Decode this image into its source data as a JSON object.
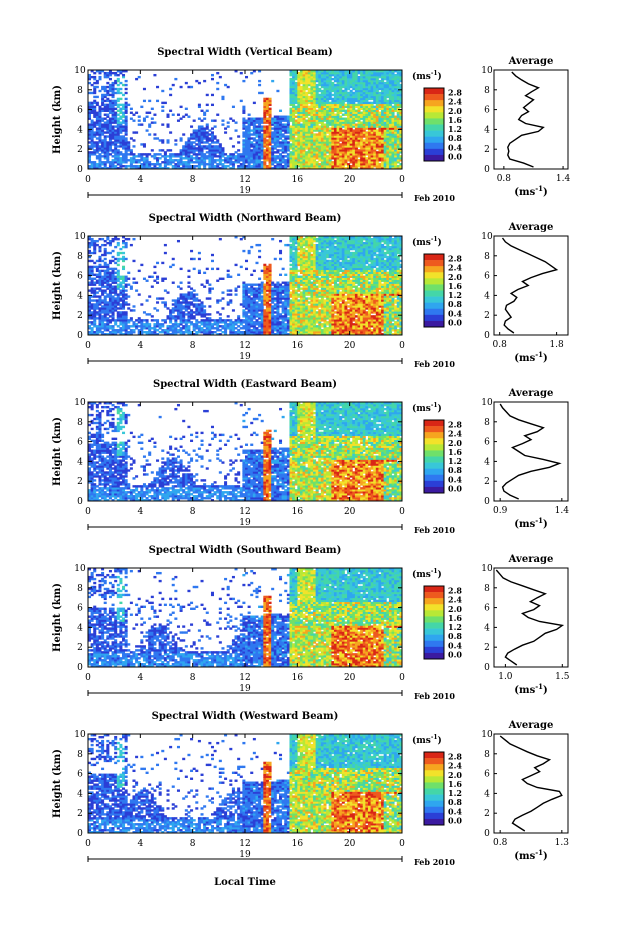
{
  "chart_data": [
    {
      "type": "heatmap",
      "title": "Spectral Width (Vertical Beam)",
      "ylabel": "Height (km)",
      "x_ticks": [
        "0",
        "4",
        "8",
        "12",
        "16",
        "20",
        "0"
      ],
      "y_ticks": [
        "0",
        "2",
        "4",
        "6",
        "8",
        "10"
      ],
      "xlim": [
        0,
        24
      ],
      "ylim": [
        0,
        10
      ],
      "date_label": "19",
      "date_suffix": "Feb 2010",
      "colorbar": {
        "unit": "(ms",
        "unit_sup": "-1",
        "unit_close": ")",
        "ticks": [
          "2.8",
          "2.4",
          "2.0",
          "1.6",
          "1.2",
          "0.8",
          "0.4",
          "0.0"
        ]
      },
      "average": {
        "title": "Average",
        "xlabel": "(ms",
        "xlabel_sup": "-1",
        "xlabel_close": ")",
        "x_ticks": [
          "0.8",
          "1.4"
        ],
        "xlim": [
          0.7,
          1.45
        ],
        "y_ticks": [
          "0",
          "2",
          "4",
          "6",
          "8",
          "10"
        ],
        "height": [
          0.2,
          0.6,
          1.0,
          1.4,
          1.8,
          2.2,
          2.6,
          3.0,
          3.4,
          3.8,
          4.2,
          4.6,
          5.0,
          5.4,
          5.8,
          6.2,
          6.6,
          7.0,
          7.4,
          7.8,
          8.2,
          8.6,
          9.0,
          9.4,
          9.8
        ],
        "width": [
          1.1,
          1.0,
          0.86,
          0.84,
          0.85,
          0.84,
          0.86,
          0.92,
          0.98,
          1.15,
          1.2,
          1.02,
          0.95,
          0.98,
          1.05,
          1.0,
          1.05,
          1.1,
          1.02,
          1.08,
          1.15,
          1.05,
          0.98,
          0.92,
          0.88
        ]
      }
    },
    {
      "type": "heatmap",
      "title": "Spectral Width (Northward Beam)",
      "ylabel": "Height (km)",
      "x_ticks": [
        "0",
        "4",
        "8",
        "12",
        "16",
        "20",
        "0"
      ],
      "y_ticks": [
        "0",
        "2",
        "4",
        "6",
        "8",
        "10"
      ],
      "xlim": [
        0,
        24
      ],
      "ylim": [
        0,
        10
      ],
      "date_label": "19",
      "date_suffix": "Feb 2010",
      "colorbar": {
        "unit": "(ms",
        "unit_sup": "-1",
        "unit_close": ")",
        "ticks": [
          "2.8",
          "2.4",
          "2.0",
          "1.6",
          "1.2",
          "0.8",
          "0.4",
          "0.0"
        ]
      },
      "average": {
        "title": "Average",
        "xlabel": "(ms",
        "xlabel_sup": "-1",
        "xlabel_close": ")",
        "x_ticks": [
          "0.8",
          "1.8"
        ],
        "xlim": [
          0.7,
          2.0
        ],
        "y_ticks": [
          "0",
          "2",
          "4",
          "6",
          "8",
          "10"
        ],
        "height": [
          0.2,
          0.6,
          1.0,
          1.4,
          1.8,
          2.2,
          2.6,
          3.0,
          3.4,
          3.8,
          4.2,
          4.6,
          5.0,
          5.4,
          5.8,
          6.2,
          6.6,
          7.0,
          7.4,
          7.8,
          8.2,
          8.6,
          9.0,
          9.4,
          9.8
        ],
        "width": [
          1.05,
          0.95,
          0.88,
          0.9,
          1.0,
          0.95,
          0.9,
          0.92,
          1.05,
          1.1,
          1.0,
          1.12,
          1.3,
          1.2,
          1.35,
          1.55,
          1.8,
          1.7,
          1.6,
          1.45,
          1.3,
          1.15,
          1.0,
          0.9,
          0.85
        ]
      }
    },
    {
      "type": "heatmap",
      "title": "Spectral Width (Eastward Beam)",
      "ylabel": "Height (km)",
      "x_ticks": [
        "0",
        "4",
        "8",
        "12",
        "16",
        "20",
        "0"
      ],
      "y_ticks": [
        "0",
        "2",
        "4",
        "6",
        "8",
        "10"
      ],
      "xlim": [
        0,
        24
      ],
      "ylim": [
        0,
        10
      ],
      "date_label": "19",
      "date_suffix": "Feb 2010",
      "colorbar": {
        "unit": "(ms",
        "unit_sup": "-1",
        "unit_close": ")",
        "ticks": [
          "2.8",
          "2.4",
          "2.0",
          "1.6",
          "1.2",
          "0.8",
          "0.4",
          "0.0"
        ]
      },
      "average": {
        "title": "Average",
        "xlabel": "(ms",
        "xlabel_sup": "-1",
        "xlabel_close": ")",
        "x_ticks": [
          "0.9",
          "1.4"
        ],
        "xlim": [
          0.85,
          1.45
        ],
        "y_ticks": [
          "0",
          "2",
          "4",
          "6",
          "8",
          "10"
        ],
        "height": [
          0.2,
          0.6,
          1.0,
          1.4,
          1.8,
          2.2,
          2.6,
          3.0,
          3.4,
          3.8,
          4.2,
          4.6,
          5.0,
          5.4,
          5.8,
          6.2,
          6.6,
          7.0,
          7.4,
          7.8,
          8.2,
          8.6,
          9.0,
          9.4,
          9.8
        ],
        "width": [
          1.05,
          0.98,
          0.93,
          0.92,
          0.95,
          1.0,
          1.05,
          1.15,
          1.3,
          1.38,
          1.25,
          1.1,
          1.05,
          1.0,
          1.08,
          1.15,
          1.1,
          1.2,
          1.25,
          1.15,
          1.05,
          0.98,
          0.95,
          0.92,
          0.9
        ]
      }
    },
    {
      "type": "heatmap",
      "title": "Spectral Width (Southward Beam)",
      "ylabel": "Height (km)",
      "x_ticks": [
        "0",
        "4",
        "8",
        "12",
        "16",
        "20",
        "0"
      ],
      "y_ticks": [
        "0",
        "2",
        "4",
        "6",
        "8",
        "10"
      ],
      "xlim": [
        0,
        24
      ],
      "ylim": [
        0,
        10
      ],
      "date_label": "19",
      "date_suffix": "Feb 2010",
      "colorbar": {
        "unit": "(ms",
        "unit_sup": "-1",
        "unit_close": ")",
        "ticks": [
          "2.8",
          "2.4",
          "2.0",
          "1.6",
          "1.2",
          "0.8",
          "0.4",
          "0.0"
        ]
      },
      "average": {
        "title": "Average",
        "xlabel": "(ms",
        "xlabel_sup": "-1",
        "xlabel_close": ")",
        "x_ticks": [
          "1.0",
          "1.5"
        ],
        "xlim": [
          0.9,
          1.55
        ],
        "y_ticks": [
          "0",
          "2",
          "4",
          "6",
          "8",
          "10"
        ],
        "height": [
          0.2,
          0.6,
          1.0,
          1.4,
          1.8,
          2.2,
          2.6,
          3.0,
          3.4,
          3.8,
          4.2,
          4.6,
          5.0,
          5.4,
          5.8,
          6.2,
          6.6,
          7.0,
          7.4,
          7.8,
          8.2,
          8.6,
          9.0,
          9.4,
          9.8
        ],
        "width": [
          1.1,
          1.05,
          1.0,
          1.02,
          1.08,
          1.15,
          1.25,
          1.3,
          1.35,
          1.45,
          1.5,
          1.3,
          1.2,
          1.15,
          1.25,
          1.3,
          1.22,
          1.28,
          1.35,
          1.25,
          1.15,
          1.05,
          0.98,
          0.95,
          0.92
        ]
      }
    },
    {
      "type": "heatmap",
      "title": "Spectral Width (Westward Beam)",
      "ylabel": "Height (km)",
      "x_ticks": [
        "0",
        "4",
        "8",
        "12",
        "16",
        "20",
        "0"
      ],
      "y_ticks": [
        "0",
        "2",
        "4",
        "6",
        "8",
        "10"
      ],
      "xlim": [
        0,
        24
      ],
      "ylim": [
        0,
        10
      ],
      "date_label": "19",
      "date_suffix": "Feb 2010",
      "xlabel": "Local Time",
      "colorbar": {
        "unit": "(ms",
        "unit_sup": "-1",
        "unit_close": ")",
        "ticks": [
          "2.8",
          "2.4",
          "2.0",
          "1.6",
          "1.2",
          "0.8",
          "0.4",
          "0.0"
        ]
      },
      "average": {
        "title": "Average",
        "xlabel": "(ms",
        "xlabel_sup": "-1",
        "xlabel_close": ")",
        "x_ticks": [
          "0.8",
          "1.3"
        ],
        "xlim": [
          0.75,
          1.35
        ],
        "y_ticks": [
          "0",
          "2",
          "4",
          "6",
          "8",
          "10"
        ],
        "height": [
          0.2,
          0.6,
          1.0,
          1.4,
          1.8,
          2.2,
          2.6,
          3.0,
          3.4,
          3.8,
          4.2,
          4.6,
          5.0,
          5.4,
          5.8,
          6.2,
          6.6,
          7.0,
          7.4,
          7.8,
          8.2,
          8.6,
          9.0,
          9.4,
          9.8
        ],
        "width": [
          1.0,
          0.95,
          0.9,
          0.92,
          0.98,
          1.05,
          1.1,
          1.15,
          1.22,
          1.3,
          1.28,
          1.1,
          1.02,
          0.98,
          1.05,
          1.12,
          1.08,
          1.15,
          1.2,
          1.1,
          1.02,
          0.95,
          0.88,
          0.84,
          0.8
        ]
      }
    }
  ],
  "colormap": [
    "#3b1aa0",
    "#2b3fd6",
    "#2f78f0",
    "#2fa6ef",
    "#38c7d8",
    "#44d6a8",
    "#6fe06a",
    "#b8e836",
    "#f2e22a",
    "#f6a51f",
    "#ee5a1e",
    "#d92616"
  ]
}
